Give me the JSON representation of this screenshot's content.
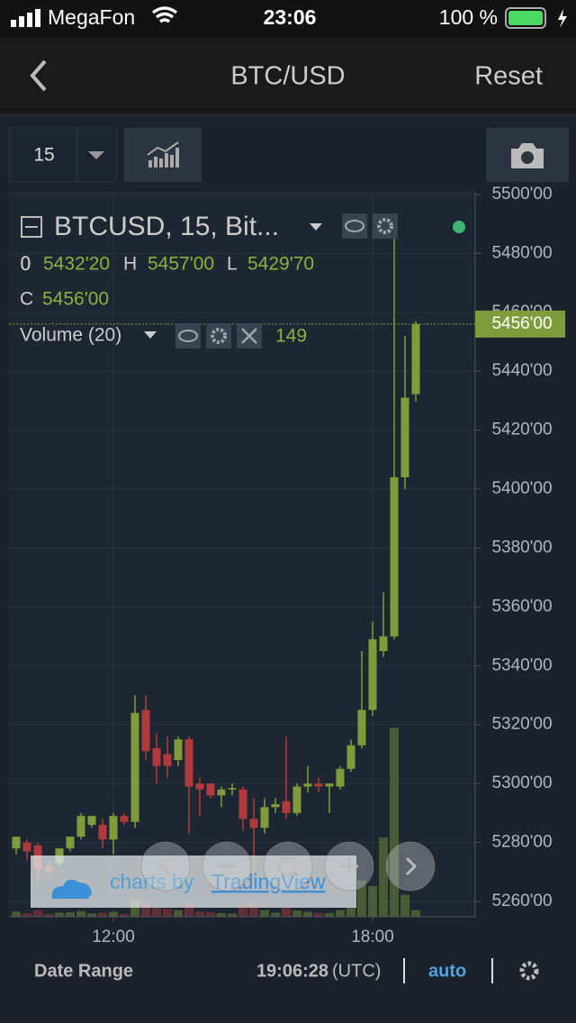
{
  "status_bar": {
    "carrier": "MegaFon",
    "time": "23:06",
    "battery": "100 %"
  },
  "nav": {
    "title": "BTC/USD",
    "reset": "Reset"
  },
  "toolbar": {
    "interval": "15"
  },
  "legend": {
    "symbol": "BTCUSD, 15, Bit...",
    "o_label": "O",
    "o": "5432'20",
    "h_label": "H",
    "h": "5457'00",
    "l_label": "L",
    "l": "5429'70",
    "c_label": "C",
    "volume": "Volume (20)"
  },
  "watermark": {
    "prefix": "charts by",
    "link": "TradingView"
  },
  "footer": {
    "date_range": "Date Range",
    "time": "19:06:28",
    "tz": "(UTC)",
    "auto": "auto"
  },
  "chart_data": {
    "type": "candlestick",
    "categories": [
      null,
      null,
      null,
      null,
      null,
      null,
      null,
      null,
      null,
      "12:00",
      null,
      null,
      null,
      null,
      null,
      null,
      null,
      null,
      null,
      null,
      null,
      null,
      null,
      null,
      null,
      null,
      null,
      null,
      null,
      null,
      null,
      null,
      null,
      "18:00",
      null,
      null,
      null,
      null
    ],
    "open": [
      5278,
      5280,
      5279,
      5272,
      5273,
      5278,
      5282,
      5286,
      5286,
      5281,
      5289,
      5287,
      5325,
      5312,
      5310,
      5308,
      5315,
      5300,
      5300,
      5296,
      5298,
      5298,
      5288,
      5285,
      5292,
      5294,
      5290,
      5299,
      5300,
      5299,
      5299,
      5305,
      5313,
      5325,
      5345,
      5350,
      5404,
      5432.2
    ],
    "high": [
      5282,
      5281,
      5280,
      5273,
      5278,
      5282,
      5290,
      5289,
      5288,
      5290,
      5290,
      5330,
      5330,
      5317,
      5316,
      5316,
      5316,
      5302,
      5300,
      5299,
      5300,
      5299,
      5295,
      5295,
      5295,
      5316,
      5300,
      5306,
      5302,
      5300,
      5306,
      5315,
      5345,
      5355,
      5365,
      5488,
      5452,
      5457
    ],
    "low": [
      5276,
      5274,
      5266,
      5269,
      5272,
      5277,
      5281,
      5285,
      5278,
      5276,
      5286,
      5285,
      5308,
      5300,
      5302,
      5306,
      5283,
      5289,
      5295,
      5292,
      5296,
      5284,
      5270,
      5283,
      5290,
      5288,
      5289,
      5297,
      5297,
      5290,
      5298,
      5304,
      5312,
      5323,
      5343,
      5349,
      5400,
      5429.7
    ],
    "close": [
      5282,
      5277,
      5271,
      5270,
      5278,
      5282,
      5289,
      5289,
      5281,
      5289,
      5287,
      5324,
      5311,
      5306,
      5306,
      5315,
      5299,
      5298,
      5296,
      5298,
      5298.5,
      5288,
      5285,
      5292,
      5293,
      5290,
      5299,
      5300,
      5299,
      5300,
      5305,
      5313,
      5325,
      5349,
      5350,
      5404,
      5431,
      5456
    ],
    "volume": [
      120,
      80,
      150,
      60,
      90,
      100,
      130,
      70,
      90,
      110,
      60,
      400,
      350,
      200,
      180,
      150,
      300,
      120,
      100,
      80,
      70,
      250,
      300,
      150,
      90,
      200,
      140,
      110,
      90,
      80,
      150,
      220,
      820,
      700,
      1800,
      4300,
      500,
      149
    ],
    "up_color": "#7e9c3c",
    "down_color": "#b03a3e",
    "ylim": [
      5254.8,
      5501.2
    ],
    "yticks": [
      {
        "value": 5260,
        "label": "5260'00"
      },
      {
        "value": 5280,
        "label": "5280'00"
      },
      {
        "value": 5300,
        "label": "5300'00"
      },
      {
        "value": 5320,
        "label": "5320'00"
      },
      {
        "value": 5340,
        "label": "5340'00"
      },
      {
        "value": 5360,
        "label": "5360'00"
      },
      {
        "value": 5380,
        "label": "5380'00"
      },
      {
        "value": 5400,
        "label": "5400'00"
      },
      {
        "value": 5420,
        "label": "5420'00"
      },
      {
        "value": 5440,
        "label": "5440'00"
      },
      {
        "value": 5460,
        "label": "5460'00"
      },
      {
        "value": 5480,
        "label": "5480'00"
      },
      {
        "value": 5500,
        "label": "5500'00"
      }
    ],
    "last_price": {
      "value": 5456,
      "label": "5456'00"
    },
    "grid": true
  }
}
